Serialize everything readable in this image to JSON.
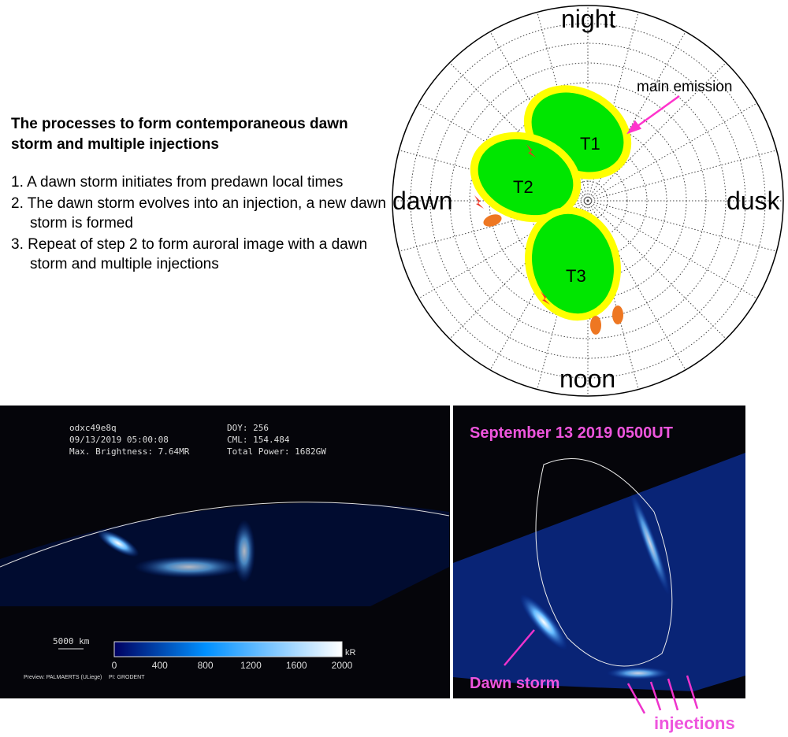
{
  "intro": {
    "title": "The processes to form contemporaneous dawn storm and multiple injections",
    "steps": [
      "1. A dawn storm initiates from predawn local times",
      "2. The dawn storm evolves into an injection, a new dawn storm is formed",
      "3. Repeat of step 2 to form auroral image with a dawn storm and multiple injections"
    ]
  },
  "polar": {
    "night": "night",
    "dawn": "dawn",
    "dusk": "dusk",
    "noon": "noon",
    "main_emission": "main emission",
    "ovals": [
      "T1",
      "T2",
      "T3"
    ],
    "colors": {
      "oval_fill": "#00e600",
      "oval_border": "#ffff00",
      "arrow": "#ff33cc",
      "injection": "#ff8800"
    }
  },
  "hst": {
    "id": "odxc49e8q",
    "datetime": "09/13/2019 05:00:08",
    "max_brightness": "Max. Brightness: 7.64MR",
    "doy": "DOY: 256",
    "cml": "CML: 154.484",
    "total_power": "Total Power: 1682GW",
    "scale": "5000 km",
    "colorbar_unit": "kR",
    "colorbar_ticks": [
      "0",
      "400",
      "800",
      "1200",
      "1600",
      "2000"
    ],
    "credit1": "Preview: PALMAERTS (ULiege)",
    "credit2": "PI: GRODENT"
  },
  "projection": {
    "title": "September 13 2019 0500UT",
    "dawn_storm": "Dawn storm",
    "injections": "injections",
    "label_color": "#ee55dd"
  }
}
